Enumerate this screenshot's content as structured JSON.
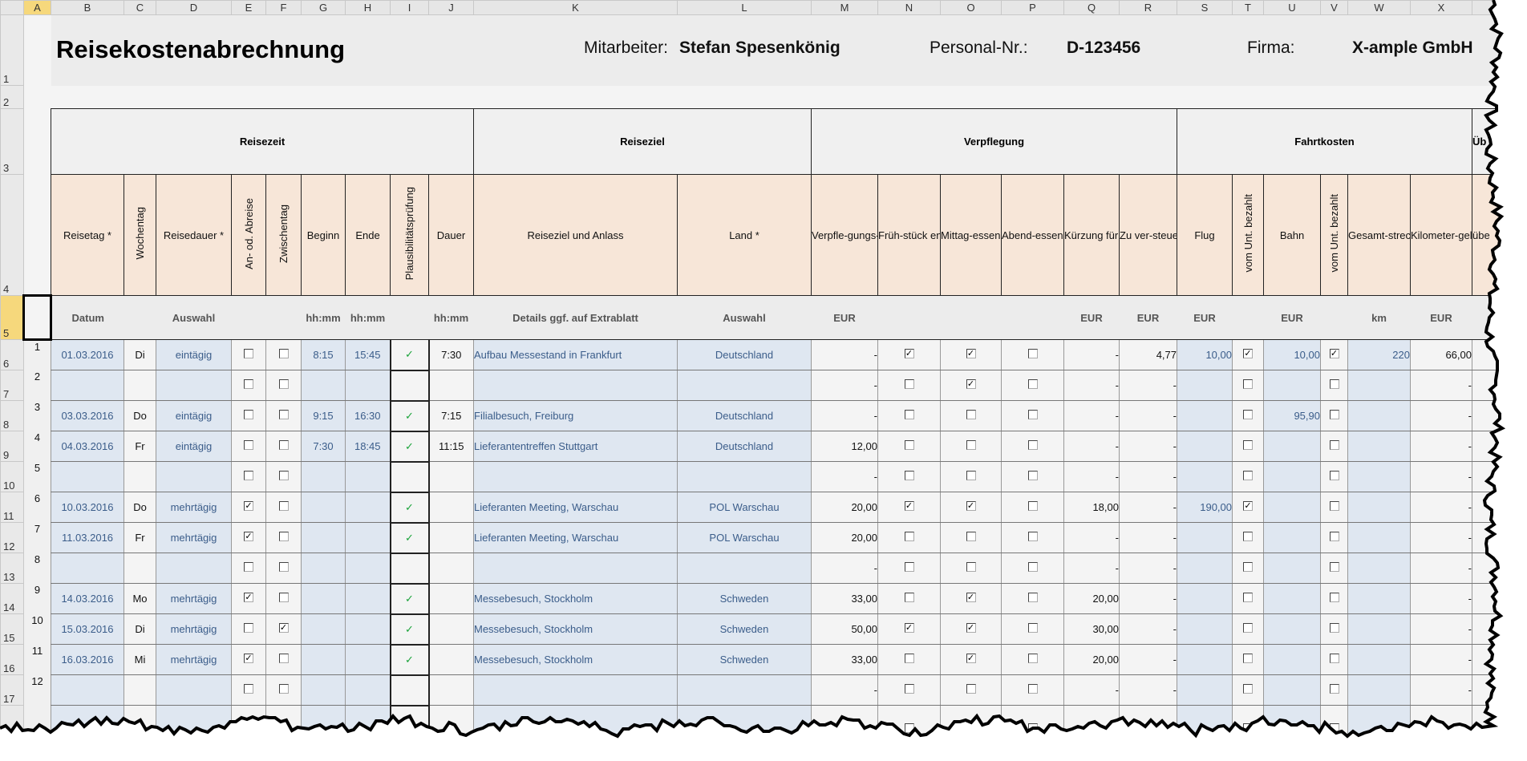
{
  "columns": [
    "A",
    "B",
    "C",
    "D",
    "E",
    "F",
    "G",
    "H",
    "I",
    "J",
    "K",
    "L",
    "M",
    "N",
    "O",
    "P",
    "Q",
    "R",
    "S",
    "T",
    "U",
    "V",
    "W",
    "X",
    ""
  ],
  "selected_cell": "A5",
  "header": {
    "title": "Reisekostenabrechnung",
    "employee_label": "Mitarbeiter:",
    "employee": "Stefan Spesenkönig",
    "personnel_label": "Personal-Nr.:",
    "personnel_no": "D-123456",
    "company_label": "Firma:",
    "company": "X-ample GmbH"
  },
  "groups": [
    "Reisezeit",
    "Reiseziel",
    "Verpflegung",
    "Fahrtkosten",
    "Üb"
  ],
  "col_headers": [
    {
      "label": "Reisetag *"
    },
    {
      "label": "Wochentag",
      "vertical": true
    },
    {
      "label": "Reisedauer *"
    },
    {
      "label": "An- od. Abreise",
      "vertical": true
    },
    {
      "label": "Zwischentag",
      "vertical": true
    },
    {
      "label": "Beginn"
    },
    {
      "label": "Ende"
    },
    {
      "label": "Plausibilitätsprüfung",
      "vertical": true
    },
    {
      "label": "Dauer"
    },
    {
      "label": "Reiseziel und Anlass"
    },
    {
      "label": "Land *"
    },
    {
      "label": "Verpfle-gungs-pauschale"
    },
    {
      "label": "Früh-stück enthalten"
    },
    {
      "label": "Mittag-essen enthalten"
    },
    {
      "label": "Abend-essen enthalten"
    },
    {
      "label": "Kürzung für Mahl-zeiten"
    },
    {
      "label": "Zu ver-steuernde Sach-bezüge"
    },
    {
      "label": "Flug"
    },
    {
      "label": "vom Unt. bezahlt",
      "vertical": true
    },
    {
      "label": "Bahn"
    },
    {
      "label": "vom Unt. bezahlt",
      "vertical": true
    },
    {
      "label": "Gesamt-strecke priv. PKW"
    },
    {
      "label": "Kilometer-geld"
    },
    {
      "label": "übe"
    }
  ],
  "units": [
    "Datum",
    "",
    "Auswahl",
    "",
    "",
    "hh:mm",
    "hh:mm",
    "",
    "hh:mm",
    "Details ggf. auf Extrablatt",
    "Auswahl",
    "EUR",
    "",
    "",
    "",
    "EUR",
    "EUR",
    "EUR",
    "",
    "EUR",
    "",
    "km",
    "EUR",
    ""
  ],
  "rows": [
    {
      "nr": "1",
      "date": "01.03.2016",
      "day": "Di",
      "dur": "eintägig",
      "an": false,
      "zw": false,
      "beg": "8:15",
      "end": "15:45",
      "ok": true,
      "len": "7:30",
      "dest": "Aufbau Messestand in Frankfurt",
      "land": "Deutschland",
      "pausch": "-",
      "fr": true,
      "mi": true,
      "ab": false,
      "kurz": "-",
      "sach": "4,77",
      "flug": "10,00",
      "flugU": true,
      "bahn": "10,00",
      "bahnU": true,
      "km": "220",
      "kmg": "66,00"
    },
    {
      "nr": "2",
      "date": "",
      "day": "",
      "dur": "",
      "an": false,
      "zw": false,
      "beg": "",
      "end": "",
      "ok": false,
      "len": "",
      "dest": "",
      "land": "",
      "pausch": "-",
      "fr": false,
      "mi": true,
      "ab": false,
      "kurz": "-",
      "sach": "-",
      "flug": "",
      "flugU": false,
      "bahn": "",
      "bahnU": false,
      "km": "",
      "kmg": "-"
    },
    {
      "nr": "3",
      "date": "03.03.2016",
      "day": "Do",
      "dur": "eintägig",
      "an": false,
      "zw": false,
      "beg": "9:15",
      "end": "16:30",
      "ok": true,
      "len": "7:15",
      "dest": "Filialbesuch, Freiburg",
      "land": "Deutschland",
      "pausch": "-",
      "fr": false,
      "mi": false,
      "ab": false,
      "kurz": "-",
      "sach": "-",
      "flug": "",
      "flugU": false,
      "bahn": "95,90",
      "bahnU": false,
      "km": "",
      "kmg": "-"
    },
    {
      "nr": "4",
      "date": "04.03.2016",
      "day": "Fr",
      "dur": "eintägig",
      "an": false,
      "zw": false,
      "beg": "7:30",
      "end": "18:45",
      "ok": true,
      "len": "11:15",
      "dest": "Lieferantentreffen Stuttgart",
      "land": "Deutschland",
      "pausch": "12,00",
      "fr": false,
      "mi": false,
      "ab": false,
      "kurz": "-",
      "sach": "-",
      "flug": "",
      "flugU": false,
      "bahn": "",
      "bahnU": false,
      "km": "",
      "kmg": "-"
    },
    {
      "nr": "5",
      "date": "",
      "day": "",
      "dur": "",
      "an": false,
      "zw": false,
      "beg": "",
      "end": "",
      "ok": false,
      "len": "",
      "dest": "",
      "land": "",
      "pausch": "-",
      "fr": false,
      "mi": false,
      "ab": false,
      "kurz": "-",
      "sach": "-",
      "flug": "",
      "flugU": false,
      "bahn": "",
      "bahnU": false,
      "km": "",
      "kmg": "-"
    },
    {
      "nr": "6",
      "date": "10.03.2016",
      "day": "Do",
      "dur": "mehrtägig",
      "an": true,
      "zw": false,
      "beg": "",
      "end": "",
      "ok": true,
      "len": "",
      "dest": "Lieferanten Meeting, Warschau",
      "land": "POL Warschau",
      "pausch": "20,00",
      "fr": true,
      "mi": true,
      "ab": false,
      "kurz": "18,00",
      "sach": "-",
      "flug": "190,00",
      "flugU": true,
      "bahn": "",
      "bahnU": false,
      "km": "",
      "kmg": "-"
    },
    {
      "nr": "7",
      "date": "11.03.2016",
      "day": "Fr",
      "dur": "mehrtägig",
      "an": true,
      "zw": false,
      "beg": "",
      "end": "",
      "ok": true,
      "len": "",
      "dest": "Lieferanten Meeting, Warschau",
      "land": "POL Warschau",
      "pausch": "20,00",
      "fr": false,
      "mi": false,
      "ab": false,
      "kurz": "-",
      "sach": "-",
      "flug": "",
      "flugU": false,
      "bahn": "",
      "bahnU": false,
      "km": "",
      "kmg": "-"
    },
    {
      "nr": "8",
      "date": "",
      "day": "",
      "dur": "",
      "an": false,
      "zw": false,
      "beg": "",
      "end": "",
      "ok": false,
      "len": "",
      "dest": "",
      "land": "",
      "pausch": "-",
      "fr": false,
      "mi": false,
      "ab": false,
      "kurz": "-",
      "sach": "-",
      "flug": "",
      "flugU": false,
      "bahn": "",
      "bahnU": false,
      "km": "",
      "kmg": "-"
    },
    {
      "nr": "9",
      "date": "14.03.2016",
      "day": "Mo",
      "dur": "mehrtägig",
      "an": true,
      "zw": false,
      "beg": "",
      "end": "",
      "ok": true,
      "len": "",
      "dest": "Messebesuch, Stockholm",
      "land": "Schweden",
      "pausch": "33,00",
      "fr": false,
      "mi": true,
      "ab": false,
      "kurz": "20,00",
      "sach": "-",
      "flug": "",
      "flugU": false,
      "bahn": "",
      "bahnU": false,
      "km": "",
      "kmg": "-"
    },
    {
      "nr": "10",
      "date": "15.03.2016",
      "day": "Di",
      "dur": "mehrtägig",
      "an": false,
      "zw": true,
      "beg": "",
      "end": "",
      "ok": true,
      "len": "",
      "dest": "Messebesuch, Stockholm",
      "land": "Schweden",
      "pausch": "50,00",
      "fr": true,
      "mi": true,
      "ab": false,
      "kurz": "30,00",
      "sach": "-",
      "flug": "",
      "flugU": false,
      "bahn": "",
      "bahnU": false,
      "km": "",
      "kmg": "-"
    },
    {
      "nr": "11",
      "date": "16.03.2016",
      "day": "Mi",
      "dur": "mehrtägig",
      "an": true,
      "zw": false,
      "beg": "",
      "end": "",
      "ok": true,
      "len": "",
      "dest": "Messebesuch, Stockholm",
      "land": "Schweden",
      "pausch": "33,00",
      "fr": false,
      "mi": true,
      "ab": false,
      "kurz": "20,00",
      "sach": "-",
      "flug": "",
      "flugU": false,
      "bahn": "",
      "bahnU": false,
      "km": "",
      "kmg": "-"
    },
    {
      "nr": "12",
      "date": "",
      "day": "",
      "dur": "",
      "an": false,
      "zw": false,
      "beg": "",
      "end": "",
      "ok": false,
      "len": "",
      "dest": "",
      "land": "",
      "pausch": "-",
      "fr": false,
      "mi": false,
      "ab": false,
      "kurz": "-",
      "sach": "-",
      "flug": "",
      "flugU": false,
      "bahn": "",
      "bahnU": false,
      "km": "",
      "kmg": "-"
    },
    {
      "nr": "",
      "date": "",
      "day": "",
      "dur": "",
      "an": false,
      "zw": false,
      "beg": "",
      "end": "",
      "ok": false,
      "len": "",
      "dest": "",
      "land": "",
      "pausch": "",
      "fr": false,
      "mi": false,
      "ab": false,
      "kurz": "-",
      "sach": "",
      "flug": "",
      "flugU": false,
      "bahn": "",
      "bahnU": false,
      "km": "",
      "kmg": ""
    }
  ],
  "colors": {
    "input_bg": "#dfe7f1",
    "input_text": "#3b5d8a",
    "header_bg": "#f7e6d8",
    "check_ok": "#1aa33a",
    "selection": "#f6d87c"
  }
}
